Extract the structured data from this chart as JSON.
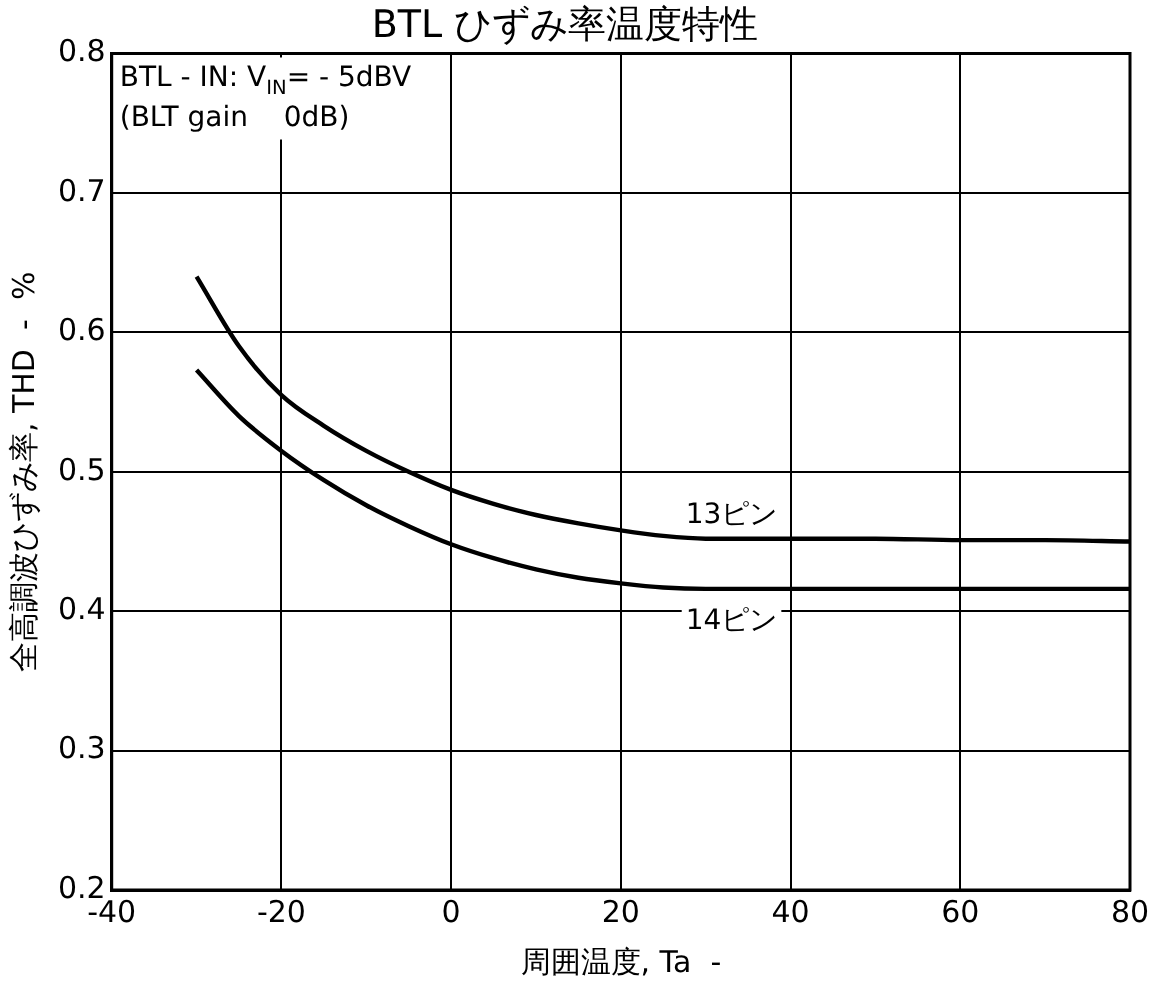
{
  "chart_data": {
    "type": "line",
    "title": "BTL ひずみ率温度特性",
    "xlabel": "周囲温度, Ta  -",
    "ylabel": "全高調波ひずみ率, THD  -  %",
    "annotations": [
      "BTL - IN: V$_{IN}$= - 5dBV",
      "(BLT gain    0dB)"
    ],
    "series": [
      {
        "name": "13ピン",
        "color": "#000000",
        "x": [
          -30,
          -25,
          -20,
          -15,
          -10,
          -5,
          0,
          5,
          10,
          15,
          20,
          25,
          30,
          40,
          50,
          60,
          70,
          80
        ],
        "values": [
          0.64,
          0.59,
          0.555,
          0.533,
          0.515,
          0.5,
          0.487,
          0.477,
          0.469,
          0.463,
          0.458,
          0.454,
          0.452,
          0.452,
          0.452,
          0.451,
          0.451,
          0.45
        ]
      },
      {
        "name": "14ピン",
        "color": "#000000",
        "x": [
          -30,
          -25,
          -20,
          -15,
          -10,
          -5,
          0,
          5,
          10,
          15,
          20,
          25,
          30,
          40,
          50,
          60,
          70,
          80
        ],
        "values": [
          0.573,
          0.54,
          0.515,
          0.494,
          0.476,
          0.461,
          0.448,
          0.438,
          0.43,
          0.424,
          0.42,
          0.417,
          0.416,
          0.416,
          0.416,
          0.416,
          0.416,
          0.416
        ]
      }
    ],
    "xlim": [
      -40,
      80
    ],
    "xticks": [
      -40,
      -20,
      0,
      20,
      40,
      60,
      80
    ],
    "ylim": [
      0.2,
      0.8
    ],
    "yticks": [
      0.2,
      0.3,
      0.4,
      0.5,
      0.6,
      0.7,
      0.8
    ],
    "grid": true,
    "legend": false,
    "marker": "none",
    "line_style": "solid"
  }
}
